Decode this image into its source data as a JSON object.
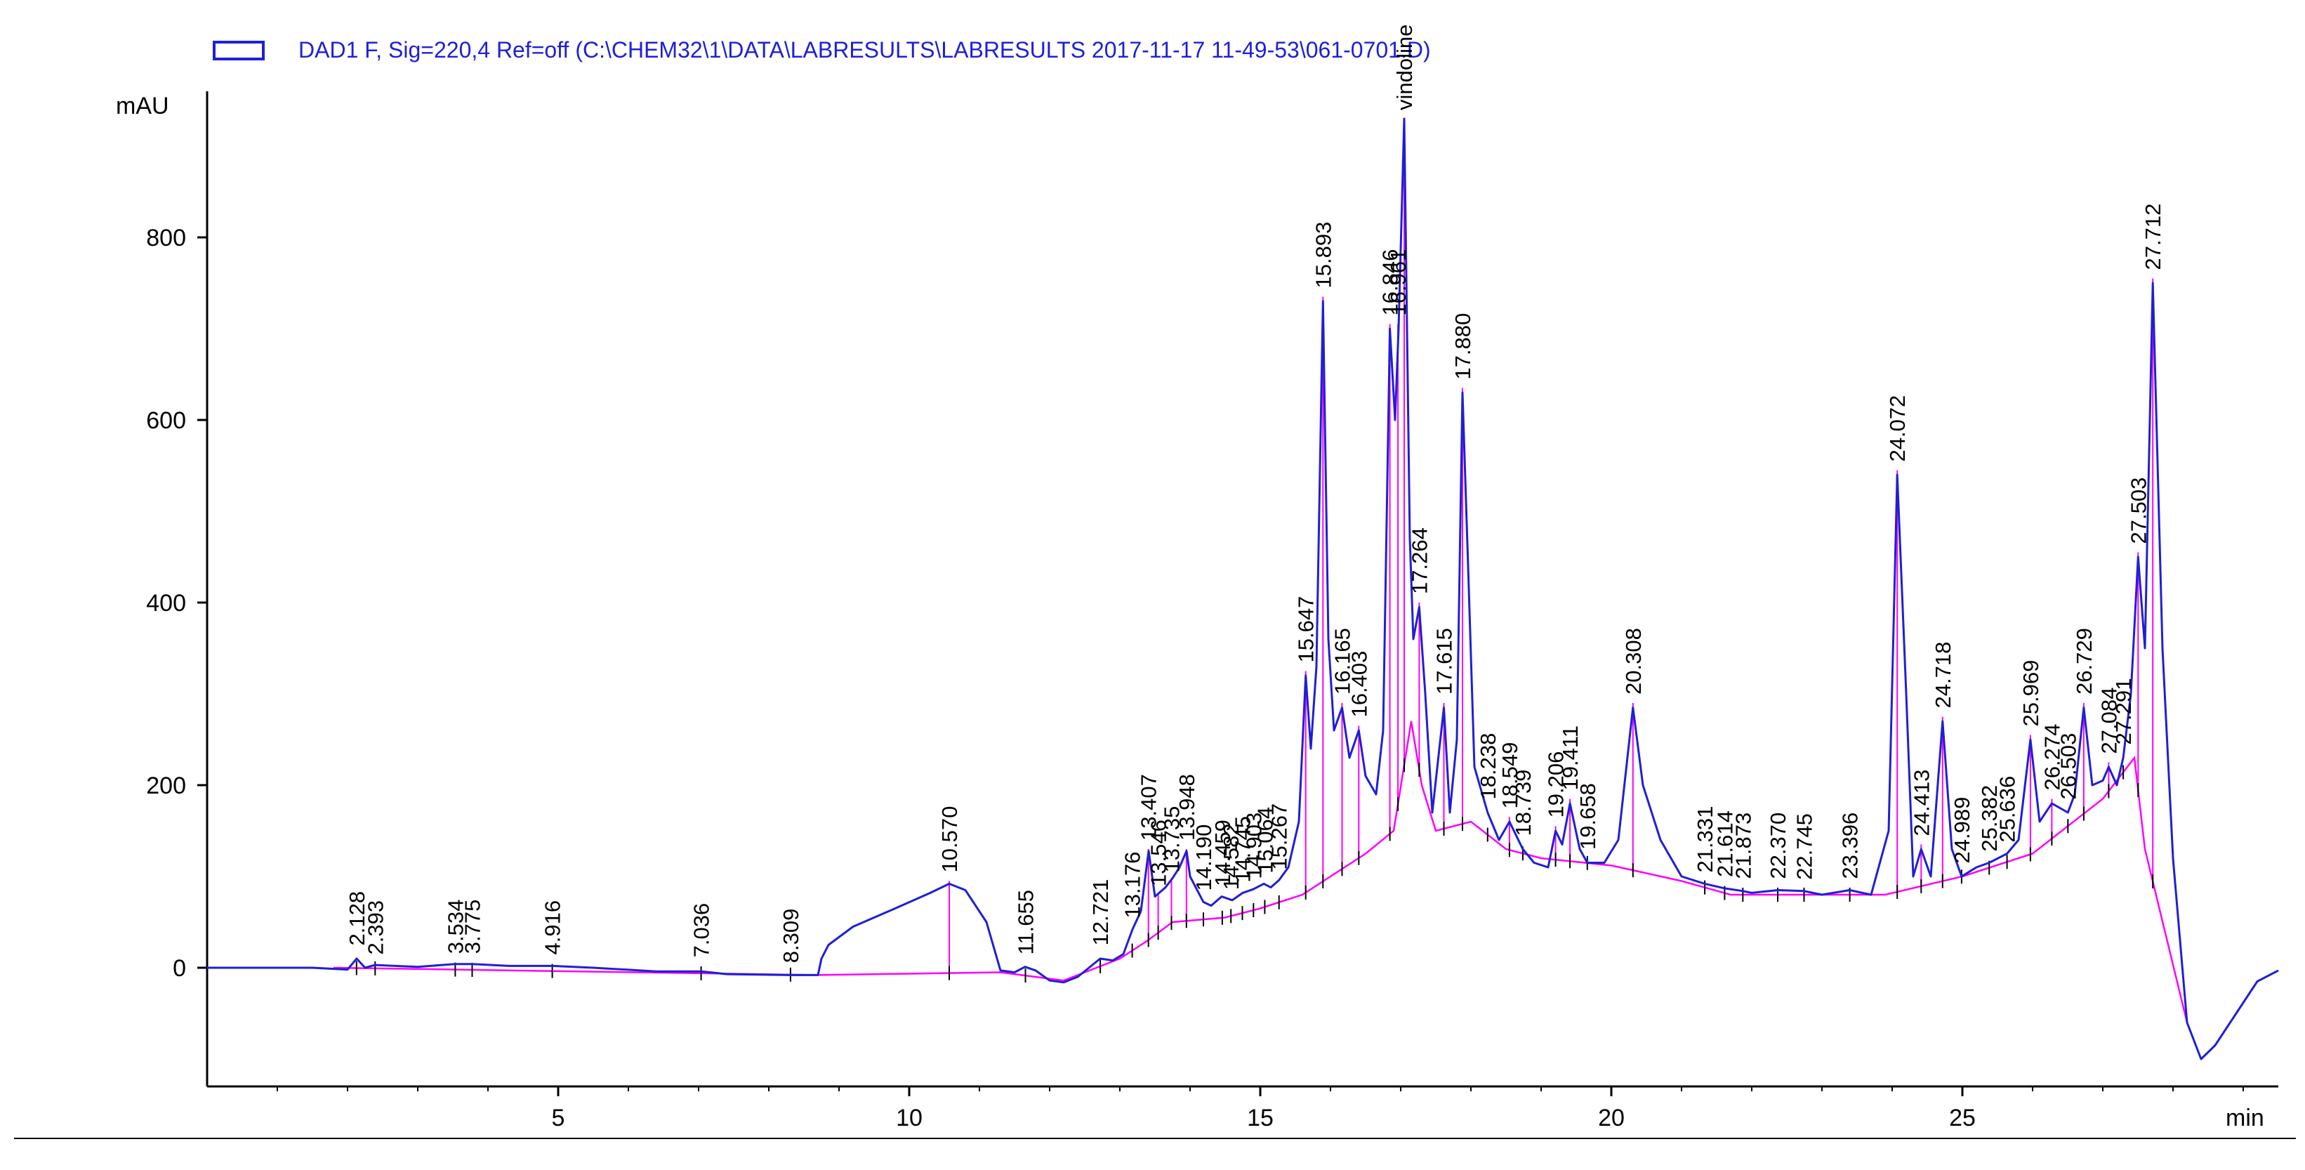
{
  "chart_data": {
    "type": "line",
    "legend_text": "DAD1 F, Sig=220,4 Ref=off (C:\\CHEM32\\1\\DATA\\LABRESULTS\\LABRESULTS 2017-11-17 11-49-53\\061-0701.D)",
    "ylabel": "mAU",
    "xlabel": "min",
    "xlim": [
      0,
      29.5
    ],
    "ylim": [
      -130,
      960
    ],
    "xticks": [
      5,
      10,
      15,
      20,
      25
    ],
    "yticks": [
      0,
      200,
      400,
      600,
      800
    ],
    "legend_position": "top-left",
    "colors": {
      "signal": "#1f1fd6",
      "baseline": "#ff00ff",
      "axes": "#000000"
    },
    "signal": {
      "name": "DAD1 F, Sig=220,4",
      "points": [
        [
          0,
          0
        ],
        [
          1.5,
          0
        ],
        [
          2.0,
          -2
        ],
        [
          2.13,
          10
        ],
        [
          2.25,
          0
        ],
        [
          2.39,
          3
        ],
        [
          3.0,
          1
        ],
        [
          3.53,
          4
        ],
        [
          3.78,
          4
        ],
        [
          4.3,
          2
        ],
        [
          4.92,
          2
        ],
        [
          5.5,
          0
        ],
        [
          6.4,
          -4
        ],
        [
          7.04,
          -4
        ],
        [
          7.4,
          -7
        ],
        [
          8.3,
          -8
        ],
        [
          8.7,
          -8
        ],
        [
          8.75,
          10
        ],
        [
          8.85,
          25
        ],
        [
          9.2,
          45
        ],
        [
          9.8,
          65
        ],
        [
          10.3,
          82
        ],
        [
          10.57,
          92
        ],
        [
          10.8,
          85
        ],
        [
          11.1,
          50
        ],
        [
          11.3,
          -3
        ],
        [
          11.5,
          -5
        ],
        [
          11.65,
          1
        ],
        [
          11.8,
          -3
        ],
        [
          12.0,
          -14
        ],
        [
          12.2,
          -16
        ],
        [
          12.4,
          -10
        ],
        [
          12.72,
          10
        ],
        [
          12.9,
          8
        ],
        [
          13.05,
          15
        ],
        [
          13.18,
          42
        ],
        [
          13.3,
          62
        ],
        [
          13.41,
          128
        ],
        [
          13.5,
          78
        ],
        [
          13.65,
          88
        ],
        [
          13.75,
          98
        ],
        [
          13.85,
          110
        ],
        [
          13.95,
          128
        ],
        [
          14.0,
          100
        ],
        [
          14.19,
          72
        ],
        [
          14.3,
          68
        ],
        [
          14.45,
          78
        ],
        [
          14.6,
          74
        ],
        [
          14.75,
          82
        ],
        [
          14.9,
          86
        ],
        [
          15.05,
          92
        ],
        [
          15.15,
          88
        ],
        [
          15.267,
          96
        ],
        [
          15.4,
          110
        ],
        [
          15.55,
          160
        ],
        [
          15.647,
          320
        ],
        [
          15.72,
          240
        ],
        [
          15.8,
          330
        ],
        [
          15.893,
          730
        ],
        [
          15.97,
          360
        ],
        [
          16.05,
          260
        ],
        [
          16.165,
          285
        ],
        [
          16.27,
          230
        ],
        [
          16.403,
          260
        ],
        [
          16.5,
          210
        ],
        [
          16.65,
          190
        ],
        [
          16.75,
          260
        ],
        [
          16.846,
          700
        ],
        [
          16.92,
          600
        ],
        [
          16.97,
          700
        ],
        [
          17.05,
          930
        ],
        [
          17.13,
          470
        ],
        [
          17.18,
          360
        ],
        [
          17.264,
          395
        ],
        [
          17.35,
          300
        ],
        [
          17.45,
          170
        ],
        [
          17.615,
          285
        ],
        [
          17.7,
          170
        ],
        [
          17.8,
          250
        ],
        [
          17.88,
          630
        ],
        [
          17.96,
          440
        ],
        [
          18.05,
          220
        ],
        [
          18.238,
          170
        ],
        [
          18.4,
          140
        ],
        [
          18.549,
          160
        ],
        [
          18.739,
          130
        ],
        [
          18.9,
          115
        ],
        [
          19.1,
          110
        ],
        [
          19.206,
          150
        ],
        [
          19.3,
          135
        ],
        [
          19.411,
          180
        ],
        [
          19.55,
          130
        ],
        [
          19.658,
          115
        ],
        [
          19.9,
          115
        ],
        [
          20.1,
          140
        ],
        [
          20.308,
          285
        ],
        [
          20.45,
          200
        ],
        [
          20.7,
          140
        ],
        [
          21.0,
          100
        ],
        [
          21.331,
          92
        ],
        [
          21.614,
          87
        ],
        [
          21.873,
          84
        ],
        [
          22.0,
          82
        ],
        [
          22.37,
          85
        ],
        [
          22.745,
          84
        ],
        [
          23.0,
          80
        ],
        [
          23.396,
          85
        ],
        [
          23.7,
          80
        ],
        [
          23.95,
          150
        ],
        [
          24.072,
          540
        ],
        [
          24.2,
          300
        ],
        [
          24.3,
          100
        ],
        [
          24.413,
          130
        ],
        [
          24.55,
          100
        ],
        [
          24.718,
          270
        ],
        [
          24.85,
          130
        ],
        [
          24.989,
          100
        ],
        [
          25.2,
          110
        ],
        [
          25.382,
          115
        ],
        [
          25.636,
          125
        ],
        [
          25.8,
          140
        ],
        [
          25.969,
          250
        ],
        [
          26.1,
          160
        ],
        [
          26.274,
          180
        ],
        [
          26.503,
          170
        ],
        [
          26.6,
          190
        ],
        [
          26.729,
          285
        ],
        [
          26.85,
          200
        ],
        [
          27.0,
          205
        ],
        [
          27.084,
          220
        ],
        [
          27.2,
          200
        ],
        [
          27.291,
          230
        ],
        [
          27.4,
          300
        ],
        [
          27.503,
          450
        ],
        [
          27.6,
          350
        ],
        [
          27.712,
          750
        ],
        [
          27.85,
          350
        ],
        [
          28.0,
          120
        ],
        [
          28.2,
          -60
        ],
        [
          28.4,
          -100
        ],
        [
          28.6,
          -85
        ],
        [
          28.9,
          -50
        ],
        [
          29.2,
          -15
        ],
        [
          29.5,
          -3
        ]
      ]
    },
    "baseline": {
      "points": [
        [
          1.8,
          0
        ],
        [
          8.7,
          -8
        ],
        [
          11.3,
          -5
        ],
        [
          12.2,
          -14
        ],
        [
          13.0,
          10
        ],
        [
          13.4,
          30
        ],
        [
          13.75,
          50
        ],
        [
          14.5,
          55
        ],
        [
          15.0,
          65
        ],
        [
          15.6,
          80
        ],
        [
          16.0,
          100
        ],
        [
          16.5,
          125
        ],
        [
          16.9,
          150
        ],
        [
          17.15,
          270
        ],
        [
          17.3,
          200
        ],
        [
          17.5,
          150
        ],
        [
          18.0,
          160
        ],
        [
          18.5,
          130
        ],
        [
          19.0,
          120
        ],
        [
          20.0,
          112
        ],
        [
          21.0,
          95
        ],
        [
          21.7,
          80
        ],
        [
          23.9,
          80
        ],
        [
          25.0,
          100
        ],
        [
          26.0,
          125
        ],
        [
          27.0,
          185
        ],
        [
          27.45,
          230
        ],
        [
          27.6,
          130
        ],
        [
          28.2,
          -60
        ]
      ]
    },
    "peak_labels": [
      "2.128",
      "2.393",
      "3.534",
      "3.775",
      "4.916",
      "7.036",
      "8.309",
      "10.570",
      "11.655",
      "12.721",
      "13.176",
      "13.407",
      "13.546",
      "13.735",
      "13.948",
      "14.190",
      "14.459",
      "14.582",
      "14.745",
      "14.903",
      "15.064",
      "15.267",
      "15.647",
      "15.893",
      "16.165",
      "16.403",
      "16.846",
      "16.961",
      "vindoline",
      "17.264",
      "17.615",
      "17.880",
      "18.238",
      "18.549",
      "18.739",
      "19.206",
      "19.411",
      "19.658",
      "20.308",
      "21.331",
      "21.614",
      "21.873",
      "22.370",
      "22.745",
      "23.396",
      "24.072",
      "24.413",
      "24.718",
      "24.989",
      "25.382",
      "25.636",
      "25.969",
      "26.274",
      "26.503",
      "26.729",
      "27.084",
      "27.291",
      "27.503",
      "27.712"
    ],
    "peak_positions": [
      [
        2.128,
        15
      ],
      [
        2.393,
        5
      ],
      [
        3.534,
        6
      ],
      [
        3.775,
        6
      ],
      [
        4.916,
        5
      ],
      [
        7.036,
        2
      ],
      [
        8.309,
        -4
      ],
      [
        10.57,
        95
      ],
      [
        11.655,
        5
      ],
      [
        12.721,
        15
      ],
      [
        13.176,
        45
      ],
      [
        13.407,
        130
      ],
      [
        13.546,
        80
      ],
      [
        13.735,
        95
      ],
      [
        13.948,
        130
      ],
      [
        14.19,
        75
      ],
      [
        14.459,
        80
      ],
      [
        14.582,
        76
      ],
      [
        14.745,
        84
      ],
      [
        14.903,
        88
      ],
      [
        15.064,
        94
      ],
      [
        15.267,
        98
      ],
      [
        15.647,
        325
      ],
      [
        15.893,
        735
      ],
      [
        16.165,
        290
      ],
      [
        16.403,
        265
      ],
      [
        16.846,
        705
      ],
      [
        16.961,
        705
      ],
      [
        17.05,
        930
      ],
      [
        17.264,
        400
      ],
      [
        17.615,
        290
      ],
      [
        17.88,
        635
      ],
      [
        18.238,
        175
      ],
      [
        18.549,
        165
      ],
      [
        18.739,
        135
      ],
      [
        19.206,
        155
      ],
      [
        19.411,
        185
      ],
      [
        19.658,
        120
      ],
      [
        20.308,
        290
      ],
      [
        21.331,
        95
      ],
      [
        21.614,
        90
      ],
      [
        21.873,
        88
      ],
      [
        22.37,
        88
      ],
      [
        22.745,
        87
      ],
      [
        23.396,
        88
      ],
      [
        24.072,
        545
      ],
      [
        24.413,
        135
      ],
      [
        24.718,
        275
      ],
      [
        24.989,
        105
      ],
      [
        25.382,
        118
      ],
      [
        25.636,
        128
      ],
      [
        25.969,
        255
      ],
      [
        26.274,
        185
      ],
      [
        26.503,
        175
      ],
      [
        26.729,
        290
      ],
      [
        27.084,
        225
      ],
      [
        27.291,
        235
      ],
      [
        27.503,
        455
      ],
      [
        27.712,
        755
      ]
    ]
  }
}
